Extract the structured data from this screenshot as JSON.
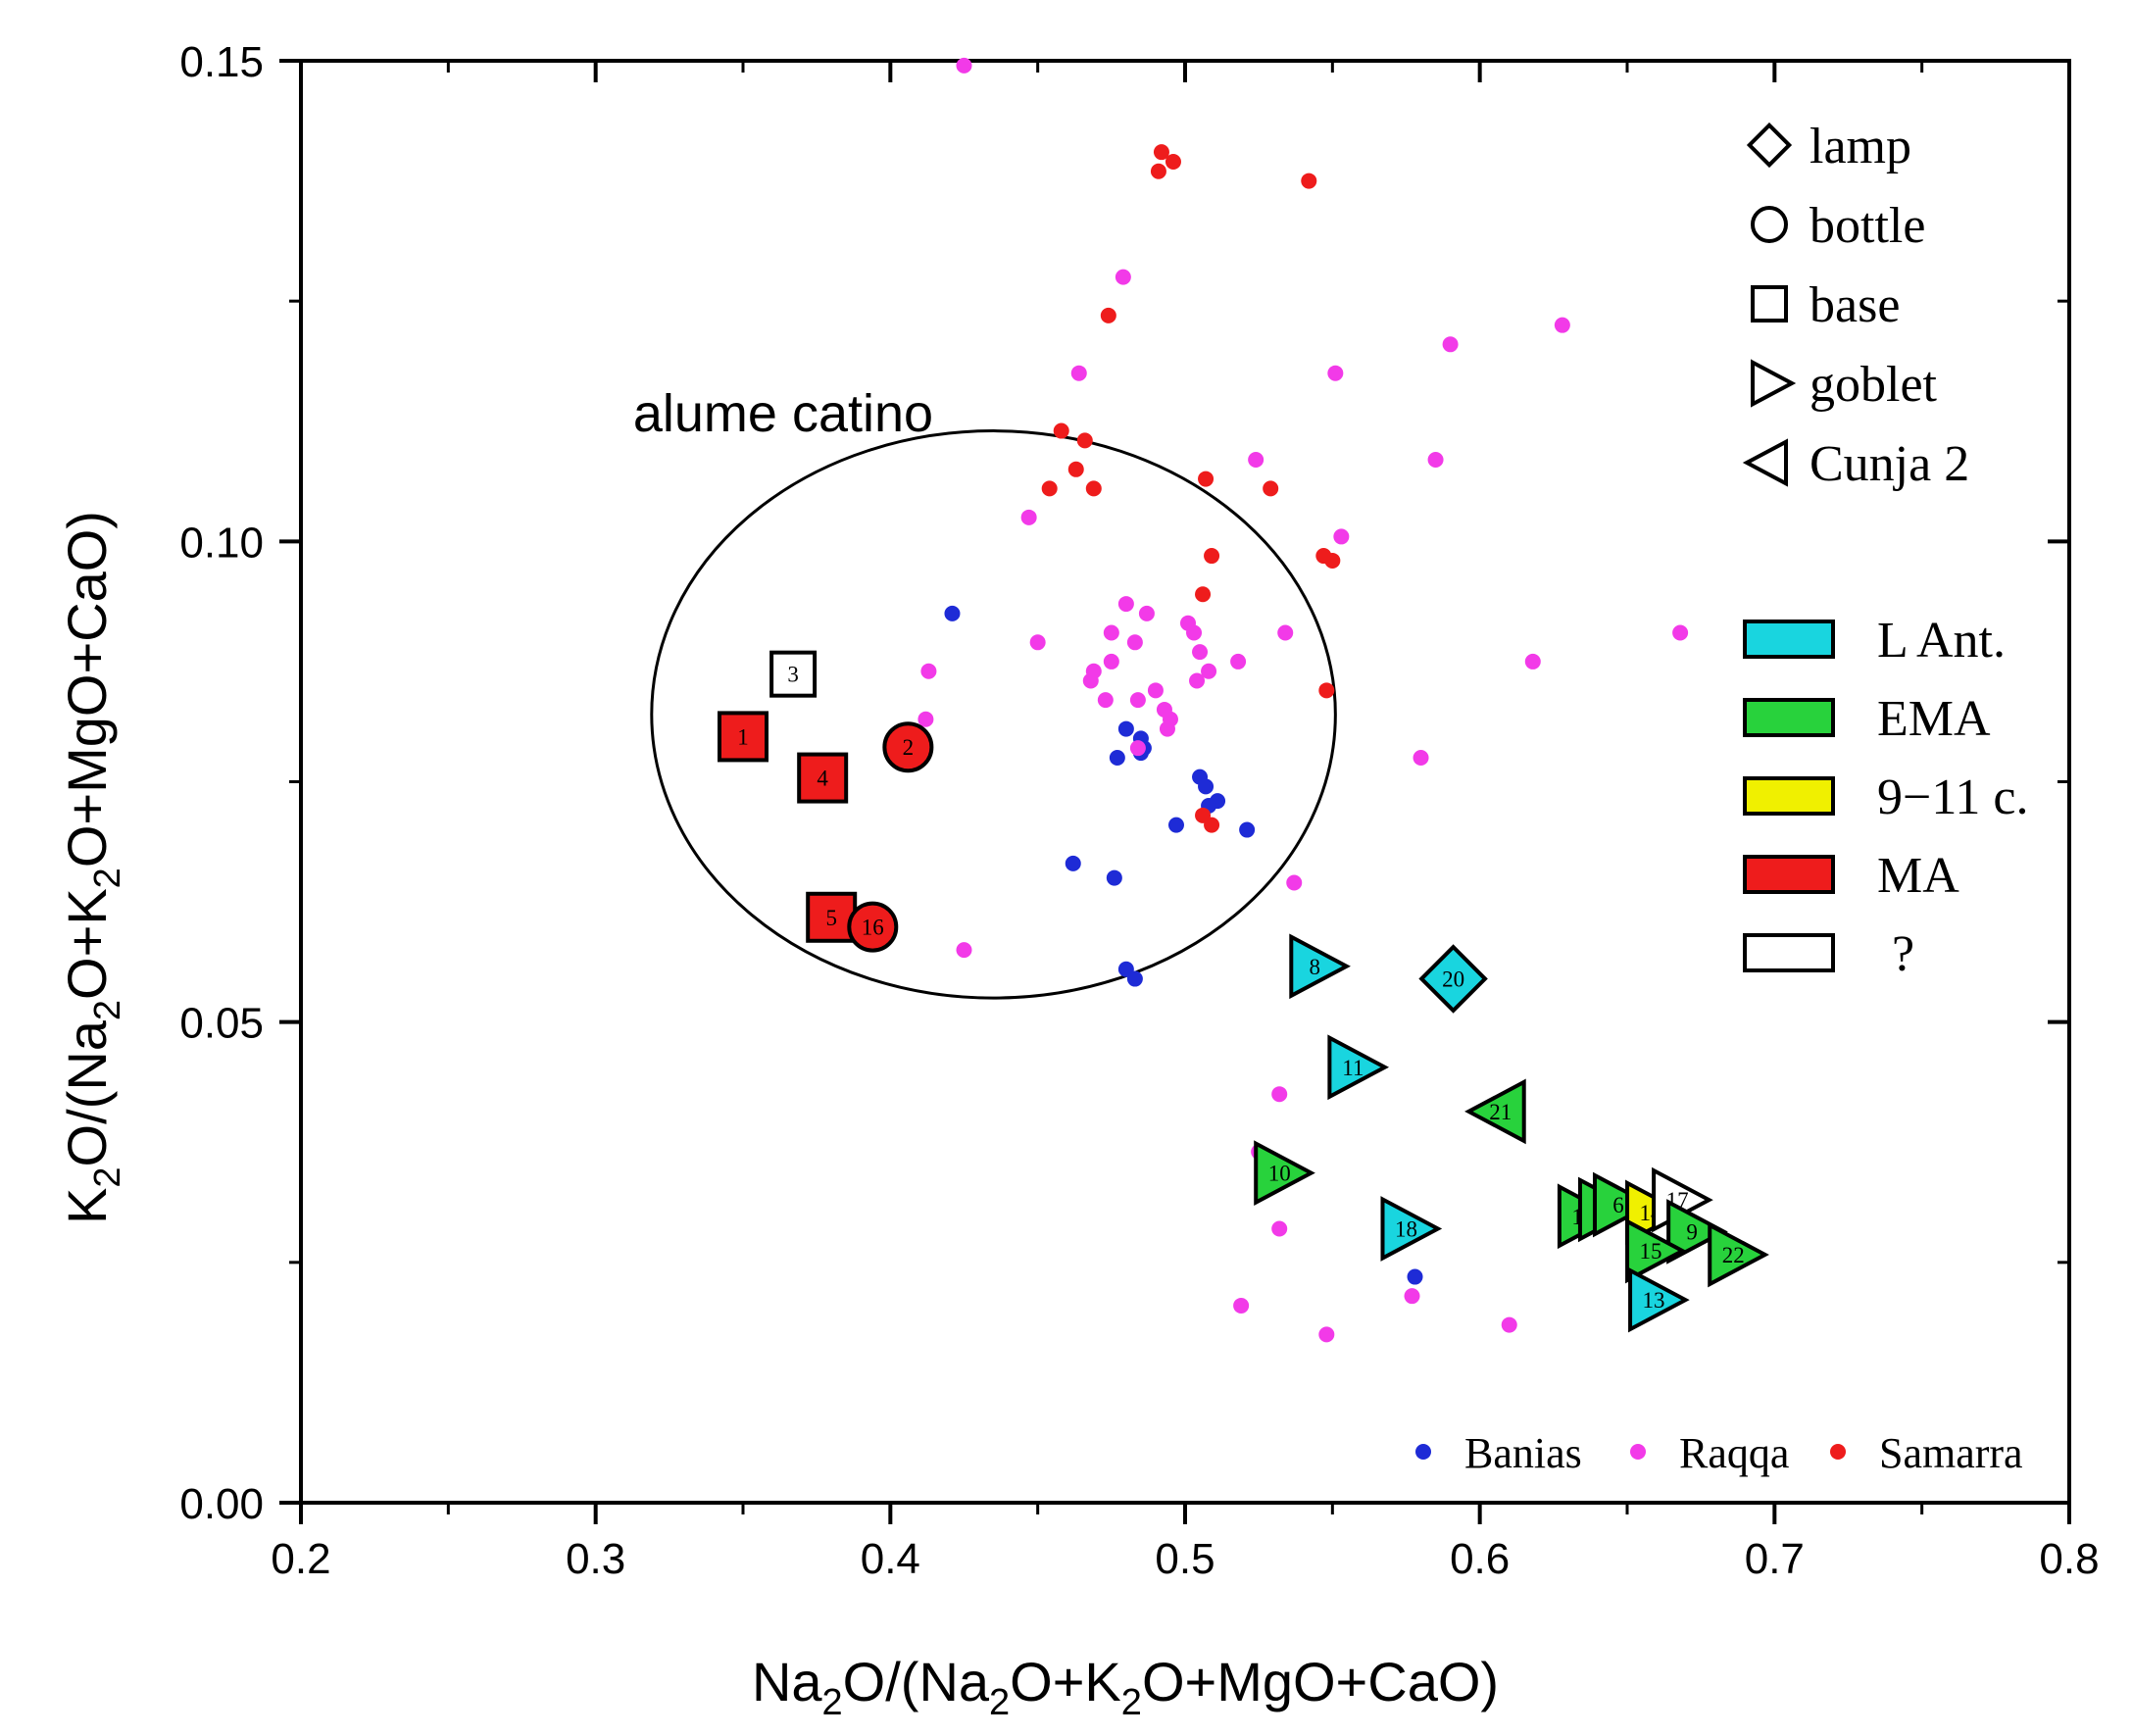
{
  "chart_data": {
    "type": "scatter",
    "title": "",
    "xlabel": "Na2O/(Na2O+K2O+MgO+CaO)",
    "ylabel": "K2O/(Na2O+K2O+MgO+CaO)",
    "xlim": [
      0.2,
      0.8
    ],
    "ylim": [
      0.0,
      0.15
    ],
    "x_major_ticks": [
      0.2,
      0.3,
      0.4,
      0.5,
      0.6,
      0.7,
      0.8
    ],
    "x_tick_labels": [
      "0.2",
      "0.3",
      "0.4",
      "0.5",
      "0.6",
      "0.7",
      "0.8"
    ],
    "y_major_ticks": [
      0.0,
      0.05,
      0.1,
      0.15
    ],
    "y_tick_labels": [
      "0.00",
      "0.05",
      "0.10",
      "0.15"
    ],
    "annotation": {
      "text": "alume catino",
      "x": 0.33,
      "y": 0.1135
    },
    "ellipse": {
      "cx": 0.435,
      "cy": 0.082,
      "rx": 0.116,
      "ry": 0.0295,
      "label": "alume catino"
    },
    "shape_legend": [
      {
        "shape": "diamond",
        "label": "lamp"
      },
      {
        "shape": "circle",
        "label": "bottle"
      },
      {
        "shape": "square",
        "label": "base"
      },
      {
        "shape": "triangle-right",
        "label": "goblet"
      },
      {
        "shape": "triangle-left",
        "label": "Cunja 2"
      }
    ],
    "period_legend": [
      {
        "label": "L Ant.",
        "color": "#19d5df"
      },
      {
        "label": "EMA",
        "color": "#28d23c"
      },
      {
        "label": "9−11 c.",
        "color": "#f0f000"
      },
      {
        "label": "MA",
        "color": "#ee1c1c"
      },
      {
        "label": "?",
        "color": "#ffffff"
      }
    ],
    "reference_legend": [
      {
        "label": "Banias",
        "color": "#1e2bd6"
      },
      {
        "label": "Raqqa",
        "color": "#f23ae8"
      },
      {
        "label": "Samarra",
        "color": "#ee1c1c"
      }
    ],
    "reference_series": [
      {
        "name": "Banias",
        "color": "#1e2bd6",
        "points": [
          [
            0.421,
            0.0925
          ],
          [
            0.48,
            0.0805
          ],
          [
            0.477,
            0.0775
          ],
          [
            0.485,
            0.0795
          ],
          [
            0.486,
            0.0785
          ],
          [
            0.485,
            0.078
          ],
          [
            0.505,
            0.0755
          ],
          [
            0.507,
            0.0745
          ],
          [
            0.511,
            0.073
          ],
          [
            0.508,
            0.0725
          ],
          [
            0.497,
            0.0705
          ],
          [
            0.521,
            0.07
          ],
          [
            0.462,
            0.0665
          ],
          [
            0.476,
            0.065
          ],
          [
            0.48,
            0.0555
          ],
          [
            0.483,
            0.0545
          ],
          [
            0.578,
            0.0235
          ]
        ]
      },
      {
        "name": "Raqqa",
        "color": "#f23ae8",
        "points": [
          [
            0.425,
            0.1495
          ],
          [
            0.479,
            0.1275
          ],
          [
            0.464,
            0.1175
          ],
          [
            0.447,
            0.1025
          ],
          [
            0.59,
            0.1205
          ],
          [
            0.628,
            0.1225
          ],
          [
            0.551,
            0.1175
          ],
          [
            0.585,
            0.1085
          ],
          [
            0.524,
            0.1085
          ],
          [
            0.553,
            0.1005
          ],
          [
            0.45,
            0.0895
          ],
          [
            0.48,
            0.0935
          ],
          [
            0.487,
            0.0925
          ],
          [
            0.475,
            0.0905
          ],
          [
            0.483,
            0.0895
          ],
          [
            0.501,
            0.0915
          ],
          [
            0.503,
            0.0905
          ],
          [
            0.505,
            0.0885
          ],
          [
            0.534,
            0.0905
          ],
          [
            0.518,
            0.0875
          ],
          [
            0.475,
            0.0875
          ],
          [
            0.469,
            0.0865
          ],
          [
            0.468,
            0.0855
          ],
          [
            0.508,
            0.0865
          ],
          [
            0.504,
            0.0855
          ],
          [
            0.473,
            0.0835
          ],
          [
            0.49,
            0.0845
          ],
          [
            0.484,
            0.0835
          ],
          [
            0.493,
            0.0825
          ],
          [
            0.495,
            0.0815
          ],
          [
            0.494,
            0.0805
          ],
          [
            0.484,
            0.0785
          ],
          [
            0.413,
            0.0865
          ],
          [
            0.412,
            0.0815
          ],
          [
            0.618,
            0.0875
          ],
          [
            0.668,
            0.0905
          ],
          [
            0.58,
            0.0775
          ],
          [
            0.537,
            0.0645
          ],
          [
            0.425,
            0.0575
          ],
          [
            0.532,
            0.0425
          ],
          [
            0.525,
            0.0365
          ],
          [
            0.532,
            0.0285
          ],
          [
            0.519,
            0.0205
          ],
          [
            0.548,
            0.0175
          ],
          [
            0.577,
            0.0215
          ],
          [
            0.61,
            0.0185
          ]
        ]
      },
      {
        "name": "Samarra",
        "color": "#ee1c1c",
        "points": [
          [
            0.492,
            0.1405
          ],
          [
            0.496,
            0.1395
          ],
          [
            0.491,
            0.1385
          ],
          [
            0.542,
            0.1375
          ],
          [
            0.474,
            0.1235
          ],
          [
            0.458,
            0.1115
          ],
          [
            0.466,
            0.1105
          ],
          [
            0.463,
            0.1075
          ],
          [
            0.454,
            0.1055
          ],
          [
            0.469,
            0.1055
          ],
          [
            0.507,
            0.1065
          ],
          [
            0.529,
            0.1055
          ],
          [
            0.547,
            0.0985
          ],
          [
            0.55,
            0.098
          ],
          [
            0.509,
            0.0985
          ],
          [
            0.506,
            0.0945
          ],
          [
            0.548,
            0.0845
          ],
          [
            0.506,
            0.0715
          ],
          [
            0.509,
            0.0705
          ]
        ]
      }
    ],
    "samples": [
      {
        "id": "1",
        "shape": "square",
        "period": "MA",
        "x": 0.35,
        "y": 0.0797
      },
      {
        "id": "2",
        "shape": "circle",
        "period": "MA",
        "x": 0.406,
        "y": 0.0786
      },
      {
        "id": "3",
        "shape": "square",
        "period": "?",
        "x": 0.367,
        "y": 0.0862
      },
      {
        "id": "4",
        "shape": "square",
        "period": "MA",
        "x": 0.377,
        "y": 0.0754
      },
      {
        "id": "5",
        "shape": "square",
        "period": "MA",
        "x": 0.38,
        "y": 0.0609
      },
      {
        "id": "16",
        "shape": "circle",
        "period": "MA",
        "x": 0.394,
        "y": 0.0599
      },
      {
        "id": "8",
        "shape": "triangle-right",
        "period": "L Ant.",
        "x": 0.544,
        "y": 0.0558
      },
      {
        "id": "20",
        "shape": "diamond",
        "period": "L Ant.",
        "x": 0.591,
        "y": 0.0545
      },
      {
        "id": "11",
        "shape": "triangle-right",
        "period": "L Ant.",
        "x": 0.557,
        "y": 0.0453
      },
      {
        "id": "21",
        "shape": "triangle-left",
        "period": "EMA",
        "x": 0.607,
        "y": 0.0407
      },
      {
        "id": "10",
        "shape": "triangle-right",
        "period": "EMA",
        "x": 0.532,
        "y": 0.0343
      },
      {
        "id": "18",
        "shape": "triangle-right",
        "period": "L Ant.",
        "x": 0.575,
        "y": 0.0285
      },
      {
        "id": "19",
        "shape": "triangle-right",
        "period": "EMA",
        "x": 0.635,
        "y": 0.0298
      },
      {
        "id": "7",
        "shape": "triangle-right",
        "period": "EMA",
        "x": 0.642,
        "y": 0.0305
      },
      {
        "id": "6",
        "shape": "triangle-right",
        "period": "EMA",
        "x": 0.647,
        "y": 0.031
      },
      {
        "id": "14",
        "shape": "triangle-right",
        "period": "9−11 c.",
        "x": 0.658,
        "y": 0.0302
      },
      {
        "id": "17",
        "shape": "triangle-right",
        "period": "?",
        "x": 0.667,
        "y": 0.0315
      },
      {
        "id": "9",
        "shape": "triangle-right",
        "period": "EMA",
        "x": 0.672,
        "y": 0.0282
      },
      {
        "id": "15",
        "shape": "triangle-right",
        "period": "EMA",
        "x": 0.658,
        "y": 0.0262
      },
      {
        "id": "22",
        "shape": "triangle-right",
        "period": "EMA",
        "x": 0.686,
        "y": 0.0258
      },
      {
        "id": "13",
        "shape": "triangle-right",
        "period": "L Ant.",
        "x": 0.659,
        "y": 0.0211
      }
    ]
  }
}
